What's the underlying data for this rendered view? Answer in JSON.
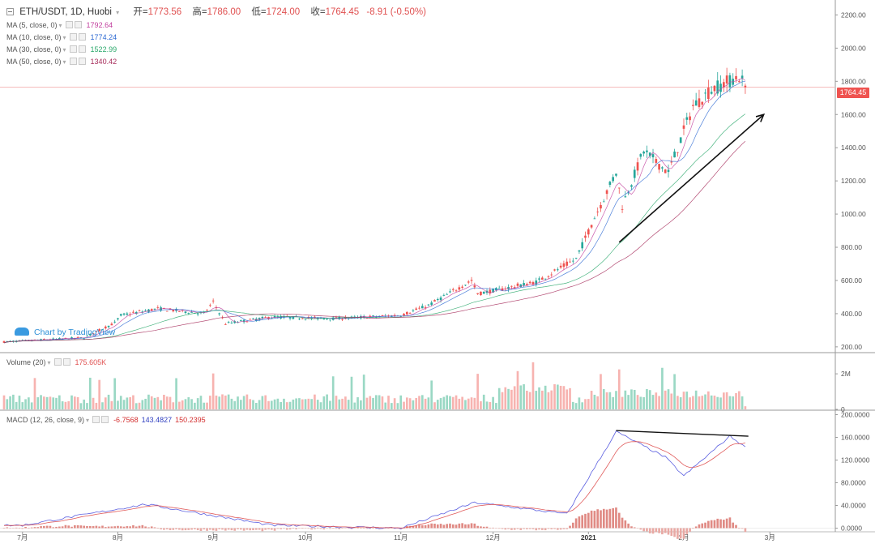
{
  "header": {
    "symbol": "ETH/USDT, 1D, Huobi",
    "open_label": "开=",
    "open": "1773.56",
    "high_label": "高=",
    "high": "1786.00",
    "low_label": "低=",
    "low": "1724.00",
    "close_label": "收=",
    "close": "1764.45",
    "change": "-8.91 (-0.50%)"
  },
  "ma_legend": [
    {
      "label": "MA (5, close, 0)",
      "value": "1792.64",
      "color": "#c2409e"
    },
    {
      "label": "MA (10, close, 0)",
      "value": "1774.24",
      "color": "#2f6bd3"
    },
    {
      "label": "MA (30, close, 0)",
      "value": "1522.99",
      "color": "#2aa86b"
    },
    {
      "label": "MA (50, close, 0)",
      "value": "1340.42",
      "color": "#a62c5a"
    }
  ],
  "volume_legend": {
    "label": "Volume (20)",
    "value": "175.605K",
    "color": "#e05050"
  },
  "macd_legend": {
    "label": "MACD (12, 26, close, 9)",
    "hist": "-6.7568",
    "macd": "143.4827",
    "signal": "150.2395",
    "hist_color": "#d32f2f",
    "macd_color": "#2f3fc0",
    "signal_color": "#d32f2f"
  },
  "watermark": "Chart by TradingView",
  "last_price_tag": "1764.45",
  "colors": {
    "up": "#26a69a",
    "down": "#ef5350",
    "ma5": "#c2409e",
    "ma10": "#2f6bd3",
    "ma30": "#2aa86b",
    "ma50": "#a62c5a",
    "vol_up": "#9ad8c4",
    "vol_down": "#f7b3b0",
    "macd_line": "#5b5fe0",
    "signal_line": "#e05a5a",
    "grid": "#eeeeee"
  },
  "chart_data": [
    {
      "type": "candlestick",
      "title": "ETH/USDT, 1D, Huobi",
      "x_tick_labels": [
        "7月",
        "8月",
        "9月",
        "10月",
        "11月",
        "12月",
        "2021",
        "2月",
        "3月"
      ],
      "y_tick_labels": [
        "200.00",
        "400.00",
        "600.00",
        "800.00",
        "1000.00",
        "1200.00",
        "1400.00",
        "1600.00",
        "1800.00",
        "2000.00",
        "2200.00"
      ],
      "ylim": [
        170,
        2290
      ],
      "last_close": 1764.45,
      "approx_close_path": [
        {
          "x": "2020-06-25",
          "close": 230
        },
        {
          "x": "2020-07-21",
          "close": 255
        },
        {
          "x": "2020-07-31",
          "close": 345
        },
        {
          "x": "2020-08-02",
          "close": 390
        },
        {
          "x": "2020-08-14",
          "close": 430
        },
        {
          "x": "2020-08-29",
          "close": 400
        },
        {
          "x": "2020-09-01",
          "close": 470
        },
        {
          "x": "2020-09-05",
          "close": 340
        },
        {
          "x": "2020-09-20",
          "close": 380
        },
        {
          "x": "2020-10-10",
          "close": 370
        },
        {
          "x": "2020-11-01",
          "close": 390
        },
        {
          "x": "2020-11-10",
          "close": 450
        },
        {
          "x": "2020-11-24",
          "close": 600
        },
        {
          "x": "2020-11-26",
          "close": 520
        },
        {
          "x": "2020-12-15",
          "close": 590
        },
        {
          "x": "2020-12-28",
          "close": 730
        },
        {
          "x": "2021-01-03",
          "close": 980
        },
        {
          "x": "2021-01-10",
          "close": 1250
        },
        {
          "x": "2021-01-12",
          "close": 1050
        },
        {
          "x": "2021-01-19",
          "close": 1380
        },
        {
          "x": "2021-01-27",
          "close": 1250
        },
        {
          "x": "2021-02-04",
          "close": 1650
        },
        {
          "x": "2021-02-10",
          "close": 1750
        },
        {
          "x": "2021-02-19",
          "close": 1830
        },
        {
          "x": "2021-02-21",
          "close": 1764.45
        }
      ],
      "moving_averages": {
        "MA5": 1792.64,
        "MA10": 1774.24,
        "MA30": 1522.99,
        "MA50": 1340.42
      },
      "annotations": [
        {
          "type": "arrow",
          "from": {
            "x": "2021-01-11",
            "y": 830
          },
          "to": {
            "x": "2021-02-27",
            "y": 1600
          }
        }
      ]
    },
    {
      "type": "bar",
      "title": "Volume (20)",
      "y_tick_labels": [
        "0",
        "2M"
      ],
      "last_value": "175.605K",
      "ylim": [
        0,
        3100000
      ]
    },
    {
      "type": "line",
      "title": "MACD (12, 26, close, 9)",
      "y_tick_labels": [
        "0.0000",
        "40.0000",
        "80.0000",
        "120.0000",
        "160.0000",
        "200.0000"
      ],
      "ylim": [
        -5,
        205
      ],
      "last_values": {
        "histogram": -6.7568,
        "macd": 143.4827,
        "signal": 150.2395
      },
      "approx_macd_path": [
        {
          "x": "2020-07-01",
          "macd": 5
        },
        {
          "x": "2020-08-10",
          "macd": 42
        },
        {
          "x": "2020-09-20",
          "macd": 5
        },
        {
          "x": "2020-11-01",
          "macd": 0
        },
        {
          "x": "2020-11-25",
          "macd": 45
        },
        {
          "x": "2020-12-25",
          "macd": 25
        },
        {
          "x": "2021-01-10",
          "macd": 170
        },
        {
          "x": "2021-01-26",
          "macd": 125
        },
        {
          "x": "2021-02-01",
          "macd": 92
        },
        {
          "x": "2021-02-16",
          "macd": 162
        },
        {
          "x": "2021-02-21",
          "macd": 143.48
        }
      ],
      "annotations": [
        {
          "type": "line",
          "from": {
            "x": "2021-01-10",
            "y": 172
          },
          "to": {
            "x": "2021-02-22",
            "y": 162
          }
        }
      ]
    }
  ]
}
